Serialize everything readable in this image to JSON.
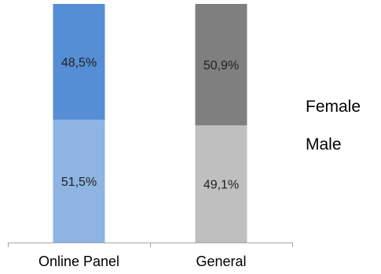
{
  "chart_data": {
    "type": "bar",
    "stacked": true,
    "normalized": true,
    "categories": [
      "Online Panel",
      "General"
    ],
    "series": [
      {
        "name": "Male",
        "values": [
          51.5,
          49.1
        ],
        "labels": [
          "51,5%",
          "49,1%"
        ],
        "colors": [
          "#8db4e2",
          "#bfbfbf"
        ]
      },
      {
        "name": "Female",
        "values": [
          48.5,
          50.9
        ],
        "labels": [
          "48,5%",
          "50,9%"
        ],
        "colors": [
          "#558ed5",
          "#7f7f7f"
        ]
      }
    ],
    "legend": {
      "placement": "right",
      "entries": [
        "Female",
        "Male"
      ]
    },
    "ylim": [
      0,
      100
    ],
    "grid": false,
    "axis_color": "#a6a6a6"
  }
}
